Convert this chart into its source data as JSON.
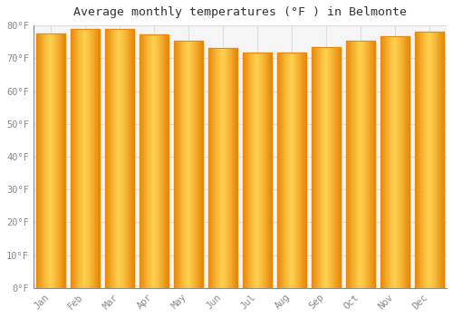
{
  "title": "Average monthly temperatures (°F ) in Belmonte",
  "months": [
    "Jan",
    "Feb",
    "Mar",
    "Apr",
    "May",
    "Jun",
    "Jul",
    "Aug",
    "Sep",
    "Oct",
    "Nov",
    "Dec"
  ],
  "values": [
    77.5,
    78.8,
    78.8,
    77.2,
    75.4,
    73.2,
    71.8,
    71.8,
    73.4,
    75.2,
    76.6,
    78.1
  ],
  "bar_color_center": "#FFD04E",
  "bar_color_edge": "#E8890C",
  "bar_color_mid": "#FBA918",
  "background_color": "#FFFFFF",
  "plot_bg_color": "#F5F5F5",
  "ylim": [
    0,
    80
  ],
  "yticks": [
    0,
    10,
    20,
    30,
    40,
    50,
    60,
    70,
    80
  ],
  "ytick_labels": [
    "0°F",
    "10°F",
    "20°F",
    "30°F",
    "40°F",
    "50°F",
    "60°F",
    "70°F",
    "80°F"
  ],
  "title_fontsize": 9.5,
  "tick_fontsize": 7.5,
  "grid_color": "#DDDDDD",
  "font_family": "monospace",
  "bar_width": 0.85
}
